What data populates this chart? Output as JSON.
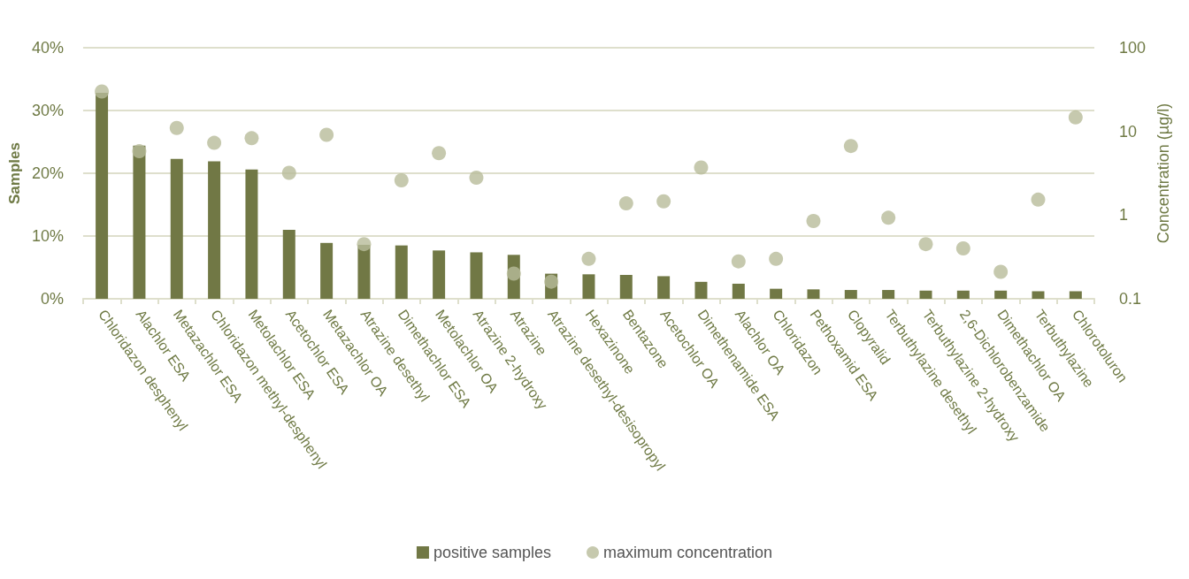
{
  "chart_data": {
    "type": "bar",
    "categories": [
      "Chloridazon desphenyl",
      "Alachlor ESA",
      "Metazachlor ESA",
      "Chloridazon methyl-desphenyl",
      "Metolachlor ESA",
      "Acetochlor ESA",
      "Metazachlor OA",
      "Atrazine desethyl",
      "Dimethachlor ESA",
      "Metolachlor OA",
      "Atrazine 2-hydroxy",
      "Atrazine",
      "Atrazine desethyl-desisopropyl",
      "Hexazinone",
      "Bentazone",
      "Acetochlor OA",
      "Dimethenamide ESA",
      "Alachlor OA",
      "Chloridazon",
      "Pethoxamid ESA",
      "Clopyralid",
      "Terbuthylazine desethyl",
      "Terbuthylazine 2-hydroxy",
      "2,6-Dichlorobenzamide",
      "Dimethachlor OA",
      "Terbuthylazine",
      "Chlorotoluron"
    ],
    "series": [
      {
        "name": "positive samples",
        "color": "#717845",
        "values": [
          32.8,
          24.4,
          22.3,
          21.9,
          20.6,
          11.0,
          8.9,
          8.6,
          8.5,
          7.7,
          7.4,
          7.0,
          4.0,
          3.9,
          3.8,
          3.6,
          2.7,
          2.4,
          1.6,
          1.5,
          1.4,
          1.4,
          1.3,
          1.3,
          1.3,
          1.2,
          1.2
        ]
      },
      {
        "name": "maximum concentration",
        "type": "scatter",
        "axis": "y2",
        "marker": "circle",
        "color": "#b8bb9a",
        "values": [
          30,
          5.8,
          11,
          7.3,
          8.3,
          3.2,
          9.1,
          0.45,
          2.6,
          5.5,
          2.8,
          0.2,
          0.16,
          0.3,
          1.38,
          1.46,
          3.7,
          0.28,
          0.3,
          0.85,
          6.7,
          0.93,
          0.45,
          0.4,
          0.21,
          1.53,
          14.7
        ]
      }
    ],
    "ylabel": "Samples",
    "y2label": "Concentration (µg/l)",
    "ylim": [
      0,
      40
    ],
    "yticks": [
      {
        "value": 0,
        "label": "0%"
      },
      {
        "value": 10,
        "label": "10%"
      },
      {
        "value": 20,
        "label": "20%"
      },
      {
        "value": 30,
        "label": "30%"
      },
      {
        "value": 40,
        "label": "40%"
      }
    ],
    "y2lim": [
      0.1,
      100
    ],
    "y2ticks": [
      0.1,
      1,
      10,
      100
    ],
    "log": "y2",
    "grid": "y",
    "legend": "bottom"
  }
}
